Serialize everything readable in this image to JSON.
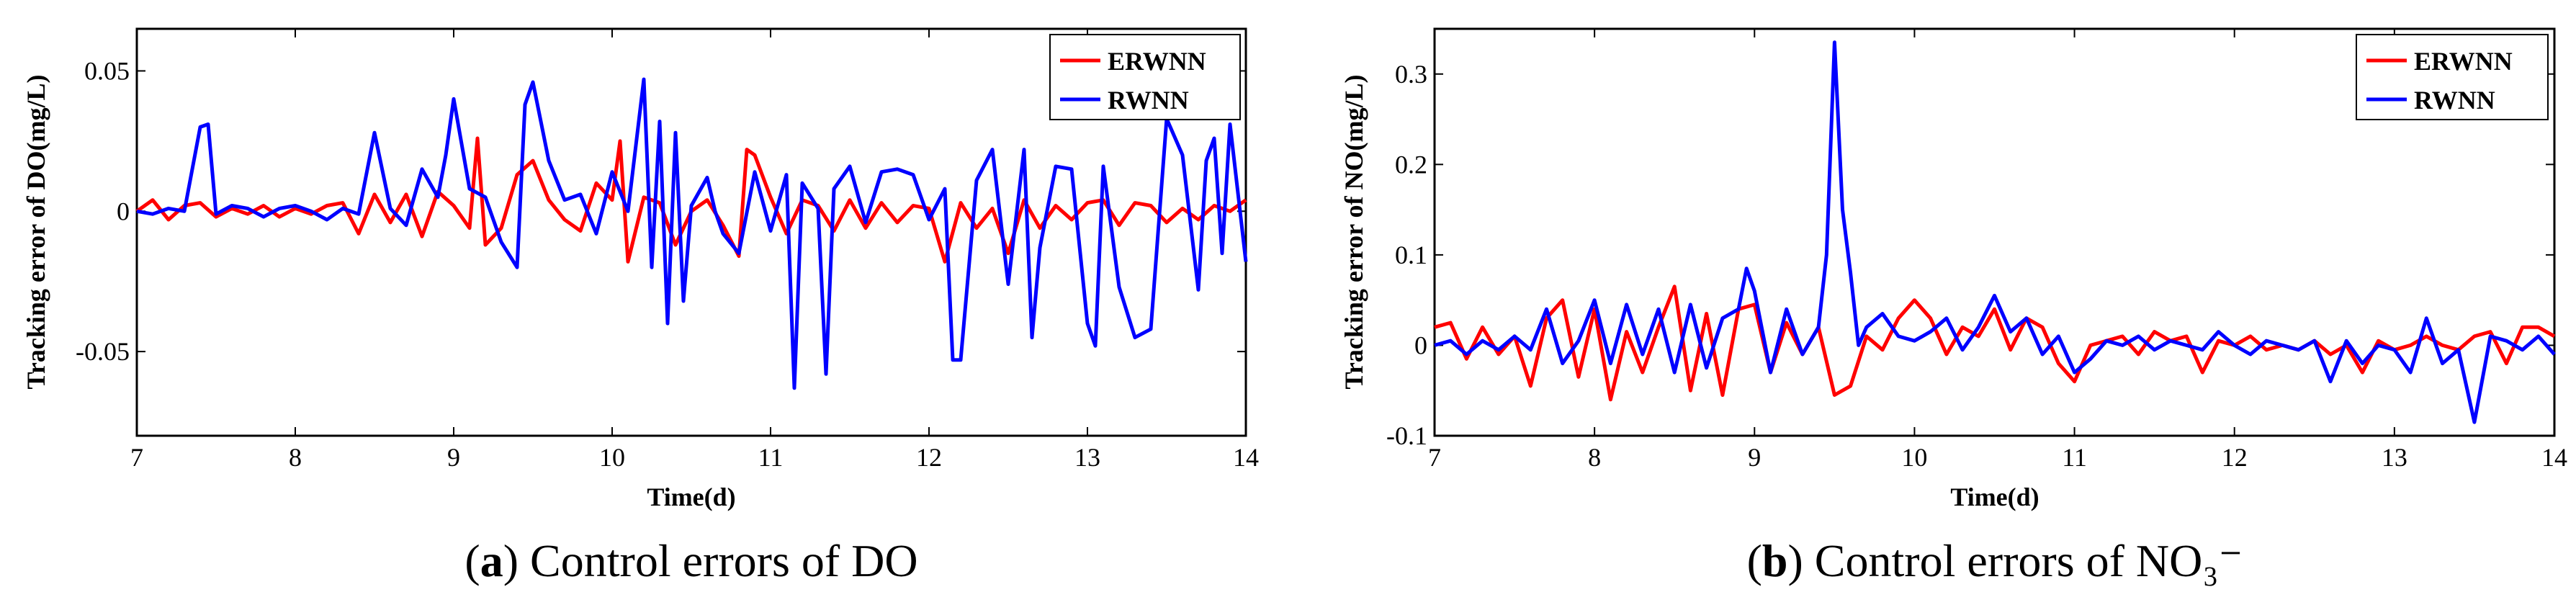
{
  "colors": {
    "ERWNN": "#ff0000",
    "RWNN": "#0000ff"
  },
  "captions": [
    {
      "open": "(",
      "letter": "a",
      "close": ") Control errors of DO"
    },
    {
      "open": "(",
      "letter": "b",
      "close": ") Control errors of NO₃⁻"
    }
  ],
  "chart_data": [
    {
      "type": "line",
      "xlabel": "Time(d)",
      "ylabel": "Tracking error of DO(mg/L)",
      "xlim": [
        7,
        14
      ],
      "ylim": [
        -0.08,
        0.065
      ],
      "xticks": [
        7,
        8,
        9,
        10,
        11,
        12,
        13,
        14
      ],
      "xtick_labels": [
        "7",
        "8",
        "9",
        "10",
        "11",
        "12",
        "13",
        "14"
      ],
      "yticks": [
        -0.05,
        0,
        0.05
      ],
      "ytick_labels": [
        "-0.05",
        "0",
        "0.05"
      ],
      "grid": false,
      "legend": "top-right",
      "series": [
        {
          "name": "ERWNN",
          "x": [
            7.0,
            7.1,
            7.2,
            7.3,
            7.4,
            7.5,
            7.6,
            7.7,
            7.8,
            7.9,
            8.0,
            8.1,
            8.2,
            8.3,
            8.4,
            8.5,
            8.6,
            8.7,
            8.8,
            8.9,
            9.0,
            9.1,
            9.15,
            9.2,
            9.3,
            9.4,
            9.5,
            9.6,
            9.7,
            9.8,
            9.9,
            10.0,
            10.05,
            10.1,
            10.2,
            10.3,
            10.4,
            10.5,
            10.6,
            10.7,
            10.8,
            10.85,
            10.9,
            11.0,
            11.1,
            11.2,
            11.3,
            11.4,
            11.5,
            11.6,
            11.7,
            11.8,
            11.9,
            12.0,
            12.1,
            12.2,
            12.3,
            12.4,
            12.5,
            12.6,
            12.7,
            12.8,
            12.9,
            13.0,
            13.1,
            13.2,
            13.3,
            13.4,
            13.5,
            13.6,
            13.7,
            13.8,
            13.9,
            14.0
          ],
          "values": [
            0.0,
            0.004,
            -0.003,
            0.002,
            0.003,
            -0.002,
            0.001,
            -0.001,
            0.002,
            -0.002,
            0.001,
            -0.001,
            0.002,
            0.003,
            -0.008,
            0.006,
            -0.004,
            0.006,
            -0.009,
            0.007,
            0.002,
            -0.006,
            0.026,
            -0.012,
            -0.006,
            0.013,
            0.018,
            0.004,
            -0.003,
            -0.007,
            0.01,
            0.004,
            0.025,
            -0.018,
            0.005,
            0.003,
            -0.012,
            0.0,
            0.004,
            -0.005,
            -0.016,
            0.022,
            0.02,
            0.005,
            -0.008,
            0.004,
            0.002,
            -0.007,
            0.004,
            -0.006,
            0.003,
            -0.004,
            0.002,
            0.001,
            -0.018,
            0.003,
            -0.006,
            0.001,
            -0.015,
            0.004,
            -0.006,
            0.002,
            -0.003,
            0.003,
            0.004,
            -0.005,
            0.003,
            0.002,
            -0.004,
            0.001,
            -0.003,
            0.002,
            0.0,
            0.004
          ]
        },
        {
          "name": "RWNN",
          "x": [
            7.0,
            7.1,
            7.2,
            7.3,
            7.4,
            7.45,
            7.5,
            7.6,
            7.7,
            7.8,
            7.9,
            8.0,
            8.1,
            8.2,
            8.3,
            8.4,
            8.5,
            8.6,
            8.7,
            8.8,
            8.9,
            8.95,
            9.0,
            9.1,
            9.2,
            9.3,
            9.4,
            9.45,
            9.5,
            9.6,
            9.7,
            9.8,
            9.9,
            10.0,
            10.1,
            10.2,
            10.25,
            10.3,
            10.35,
            10.4,
            10.45,
            10.5,
            10.6,
            10.65,
            10.7,
            10.8,
            10.9,
            11.0,
            11.1,
            11.15,
            11.2,
            11.3,
            11.35,
            11.4,
            11.5,
            11.6,
            11.7,
            11.8,
            11.9,
            12.0,
            12.1,
            12.15,
            12.2,
            12.3,
            12.4,
            12.5,
            12.6,
            12.65,
            12.7,
            12.8,
            12.9,
            13.0,
            13.05,
            13.1,
            13.2,
            13.3,
            13.4,
            13.5,
            13.6,
            13.7,
            13.75,
            13.8,
            13.85,
            13.9,
            14.0
          ],
          "values": [
            0.0,
            -0.001,
            0.001,
            0.0,
            0.03,
            0.031,
            -0.001,
            0.002,
            0.001,
            -0.002,
            0.001,
            0.002,
            0.0,
            -0.003,
            0.001,
            -0.001,
            0.028,
            0.001,
            -0.005,
            0.015,
            0.005,
            0.02,
            0.04,
            0.008,
            0.005,
            -0.011,
            -0.02,
            0.038,
            0.046,
            0.018,
            0.004,
            0.006,
            -0.008,
            0.014,
            0.0,
            0.047,
            -0.02,
            0.032,
            -0.04,
            0.028,
            -0.032,
            0.002,
            0.012,
            0.0,
            -0.008,
            -0.015,
            0.014,
            -0.007,
            0.013,
            -0.063,
            0.01,
            0.001,
            -0.058,
            0.008,
            0.016,
            -0.004,
            0.014,
            0.015,
            0.013,
            -0.003,
            0.008,
            -0.053,
            -0.053,
            0.011,
            0.022,
            -0.026,
            0.022,
            -0.045,
            -0.013,
            0.016,
            0.015,
            -0.04,
            -0.048,
            0.016,
            -0.027,
            -0.045,
            -0.042,
            0.033,
            0.02,
            -0.028,
            0.018,
            0.026,
            -0.015,
            0.031,
            -0.018
          ]
        }
      ]
    },
    {
      "type": "line",
      "xlabel": "Time(d)",
      "ylabel": "Tracking error of NO(mg/L)",
      "xlim": [
        7,
        14
      ],
      "ylim": [
        -0.1,
        0.35
      ],
      "xticks": [
        7,
        8,
        9,
        10,
        11,
        12,
        13,
        14
      ],
      "xtick_labels": [
        "7",
        "8",
        "9",
        "10",
        "11",
        "12",
        "13",
        "14"
      ],
      "yticks": [
        -0.1,
        0,
        0.1,
        0.2,
        0.3
      ],
      "ytick_labels": [
        "-0.1",
        "0",
        "0.1",
        "0.2",
        "0.3"
      ],
      "grid": false,
      "legend": "top-right",
      "series": [
        {
          "name": "ERWNN",
          "x": [
            7.0,
            7.1,
            7.2,
            7.3,
            7.4,
            7.5,
            7.6,
            7.7,
            7.8,
            7.9,
            8.0,
            8.1,
            8.2,
            8.3,
            8.4,
            8.5,
            8.6,
            8.7,
            8.8,
            8.9,
            9.0,
            9.1,
            9.2,
            9.3,
            9.4,
            9.5,
            9.6,
            9.7,
            9.8,
            9.9,
            10.0,
            10.1,
            10.2,
            10.3,
            10.4,
            10.5,
            10.6,
            10.7,
            10.8,
            10.9,
            11.0,
            11.1,
            11.2,
            11.3,
            11.4,
            11.5,
            11.6,
            11.7,
            11.8,
            11.9,
            12.0,
            12.1,
            12.2,
            12.3,
            12.4,
            12.5,
            12.6,
            12.7,
            12.8,
            12.9,
            13.0,
            13.1,
            13.2,
            13.3,
            13.4,
            13.5,
            13.6,
            13.7,
            13.8,
            13.9,
            14.0
          ],
          "values": [
            0.02,
            0.025,
            -0.015,
            0.02,
            -0.01,
            0.01,
            -0.045,
            0.03,
            0.05,
            -0.035,
            0.04,
            -0.06,
            0.015,
            -0.03,
            0.02,
            0.065,
            -0.05,
            0.035,
            -0.055,
            0.04,
            0.045,
            -0.03,
            0.025,
            -0.01,
            0.02,
            -0.055,
            -0.045,
            0.01,
            -0.005,
            0.03,
            0.05,
            0.03,
            -0.01,
            0.02,
            0.01,
            0.04,
            -0.005,
            0.03,
            0.02,
            -0.02,
            -0.04,
            0.0,
            0.005,
            0.01,
            -0.01,
            0.015,
            0.005,
            0.01,
            -0.03,
            0.005,
            0.0,
            0.01,
            -0.005,
            0.0,
            -0.005,
            0.005,
            -0.01,
            0.0,
            -0.03,
            0.005,
            -0.005,
            0.0,
            0.01,
            0.0,
            -0.005,
            0.01,
            0.015,
            -0.02,
            0.02,
            0.02,
            0.01
          ]
        },
        {
          "name": "RWNN",
          "x": [
            7.0,
            7.1,
            7.2,
            7.3,
            7.4,
            7.5,
            7.6,
            7.7,
            7.8,
            7.9,
            8.0,
            8.1,
            8.2,
            8.3,
            8.4,
            8.5,
            8.6,
            8.7,
            8.8,
            8.9,
            8.95,
            9.0,
            9.1,
            9.2,
            9.3,
            9.4,
            9.45,
            9.5,
            9.55,
            9.6,
            9.65,
            9.7,
            9.8,
            9.9,
            10.0,
            10.1,
            10.2,
            10.3,
            10.4,
            10.5,
            10.6,
            10.7,
            10.8,
            10.9,
            11.0,
            11.1,
            11.2,
            11.3,
            11.4,
            11.5,
            11.6,
            11.7,
            11.8,
            11.9,
            12.0,
            12.1,
            12.2,
            12.3,
            12.4,
            12.5,
            12.6,
            12.7,
            12.8,
            12.9,
            13.0,
            13.1,
            13.2,
            13.3,
            13.4,
            13.5,
            13.6,
            13.7,
            13.8,
            13.9,
            14.0
          ],
          "values": [
            0.0,
            0.005,
            -0.01,
            0.005,
            -0.005,
            0.01,
            -0.005,
            0.04,
            -0.02,
            0.005,
            0.05,
            -0.02,
            0.045,
            -0.01,
            0.04,
            -0.03,
            0.045,
            -0.025,
            0.03,
            0.04,
            0.085,
            0.06,
            -0.03,
            0.04,
            -0.01,
            0.02,
            0.1,
            0.335,
            0.15,
            0.08,
            0.0,
            0.02,
            0.035,
            0.01,
            0.005,
            0.015,
            0.03,
            -0.005,
            0.02,
            0.055,
            0.015,
            0.03,
            -0.01,
            0.01,
            -0.03,
            -0.015,
            0.005,
            0.0,
            0.01,
            -0.005,
            0.005,
            0.0,
            -0.005,
            0.015,
            0.0,
            -0.01,
            0.005,
            0.0,
            -0.005,
            0.005,
            -0.04,
            0.005,
            -0.02,
            0.0,
            -0.005,
            -0.03,
            0.03,
            -0.02,
            -0.005,
            -0.085,
            0.01,
            0.005,
            -0.005,
            0.01,
            -0.01
          ]
        }
      ]
    }
  ]
}
